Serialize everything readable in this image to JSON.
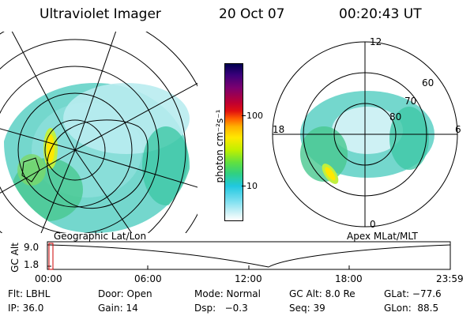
{
  "header": {
    "title": "Ultraviolet Imager",
    "date": "20 Oct 07",
    "time": "00:20:43 UT"
  },
  "colorbar": {
    "label": "photon cm⁻²s⁻¹",
    "ticks": [
      "100",
      "10"
    ],
    "colors": [
      "#000050",
      "#3a007a",
      "#7a0070",
      "#c00030",
      "#e01010",
      "#ff6000",
      "#ffb000",
      "#ffe800",
      "#c0f000",
      "#60e040",
      "#30d080",
      "#20c8e0",
      "#80e0f0",
      "#d8f4f8"
    ]
  },
  "left_map": {
    "label": "Geographic Lat/Lon"
  },
  "right_map": {
    "label": "Apex MLat/MLT",
    "mlt_labels": {
      "top": "12",
      "left": "18",
      "right": "6",
      "bottom": "0"
    },
    "lat_labels": [
      "60",
      "70",
      "80"
    ]
  },
  "altitude_plot": {
    "ylabel": "GC Alt",
    "yticks": [
      "9.0",
      "1.8"
    ],
    "xticks": [
      "00:00",
      "06:00",
      "12:00",
      "18:00",
      "23:59"
    ],
    "cursor_color": "#cc0000"
  },
  "info": {
    "flt": "Flt: LBHL",
    "ip": "IP: 36.0",
    "door": "Door: Open",
    "gain": "Gain: 14",
    "mode": "Mode: Normal",
    "dsp": "Dsp:   −0.3",
    "gcalt": "GC Alt: 8.0 Re",
    "seq": "Seq: 39",
    "glat": "GLat: −77.6",
    "glon": "GLon:  88.5"
  }
}
